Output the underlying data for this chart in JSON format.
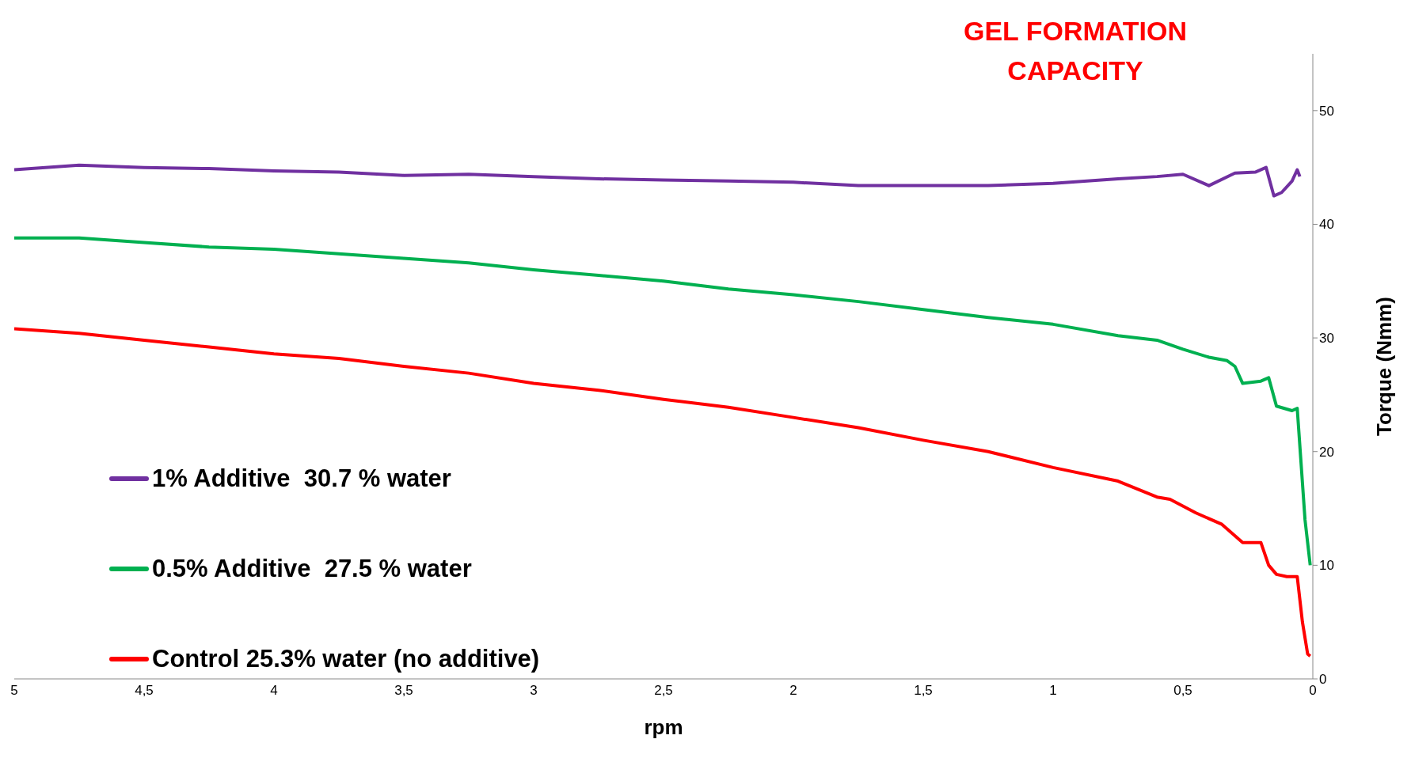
{
  "chart_data": {
    "type": "line",
    "title": "GEL FORMATION CAPACITY",
    "xlabel": "rpm",
    "ylabel": "Torque (Nmm)",
    "xlim": [
      5,
      0
    ],
    "xticks": [
      {
        "value": 5,
        "label": "5"
      },
      {
        "value": 4.5,
        "label": "4,5"
      },
      {
        "value": 4,
        "label": "4"
      },
      {
        "value": 3.5,
        "label": "3,5"
      },
      {
        "value": 3,
        "label": "3"
      },
      {
        "value": 2.5,
        "label": "2,5"
      },
      {
        "value": 2,
        "label": "2"
      },
      {
        "value": 1.5,
        "label": "1,5"
      },
      {
        "value": 1,
        "label": "1"
      },
      {
        "value": 0.5,
        "label": "0,5"
      },
      {
        "value": 0,
        "label": "0"
      }
    ],
    "ylim": [
      0,
      55
    ],
    "yticks": [
      0,
      10,
      20,
      30,
      40,
      50
    ],
    "grid": false,
    "legend": "left",
    "marker": "none",
    "line_style": "solid",
    "series": [
      {
        "name": "1% Additive  30.7 % water",
        "color": "#7030a0",
        "x": [
          5,
          4.75,
          4.5,
          4.25,
          4,
          3.75,
          3.5,
          3.25,
          3,
          2.75,
          2.5,
          2.25,
          2,
          1.75,
          1.5,
          1.25,
          1,
          0.75,
          0.6,
          0.5,
          0.4,
          0.3,
          0.22,
          0.18,
          0.15,
          0.12,
          0.08,
          0.06,
          0.05
        ],
        "values": [
          44.8,
          45.2,
          45,
          44.9,
          44.7,
          44.6,
          44.3,
          44.4,
          44.2,
          44,
          43.9,
          43.8,
          43.7,
          43.4,
          43.4,
          43.4,
          43.6,
          44,
          44.2,
          44.4,
          43.4,
          44.5,
          44.6,
          45,
          42.5,
          42.8,
          43.8,
          44.8,
          44.2
        ]
      },
      {
        "name": "0.5% Additive  27.5 % water",
        "color": "#00b050",
        "x": [
          5,
          4.75,
          4.5,
          4.25,
          4,
          3.75,
          3.5,
          3.25,
          3,
          2.75,
          2.5,
          2.25,
          2,
          1.75,
          1.5,
          1.25,
          1,
          0.75,
          0.6,
          0.5,
          0.4,
          0.33,
          0.3,
          0.27,
          0.2,
          0.17,
          0.14,
          0.08,
          0.06,
          0.03,
          0.01
        ],
        "values": [
          38.8,
          38.8,
          38.4,
          38,
          37.8,
          37.4,
          37,
          36.6,
          36,
          35.5,
          35,
          34.3,
          33.8,
          33.2,
          32.5,
          31.8,
          31.2,
          30.2,
          29.8,
          29,
          28.3,
          28,
          27.5,
          26,
          26.2,
          26.5,
          24,
          23.6,
          23.8,
          14,
          10
        ]
      },
      {
        "name": "Control 25.3% water (no additive)",
        "color": "#ff0000",
        "x": [
          5,
          4.75,
          4.5,
          4.25,
          4,
          3.75,
          3.5,
          3.25,
          3,
          2.75,
          2.5,
          2.25,
          2,
          1.75,
          1.5,
          1.25,
          1,
          0.75,
          0.6,
          0.55,
          0.45,
          0.35,
          0.27,
          0.2,
          0.17,
          0.14,
          0.1,
          0.06,
          0.04,
          0.02,
          0.01
        ],
        "values": [
          30.8,
          30.4,
          29.8,
          29.2,
          28.6,
          28.2,
          27.5,
          26.9,
          26,
          25.4,
          24.6,
          23.9,
          23,
          22.1,
          21,
          20,
          18.6,
          17.4,
          16,
          15.8,
          14.6,
          13.6,
          12,
          12,
          10,
          9.2,
          9,
          9,
          5,
          2.2,
          2
        ]
      }
    ]
  }
}
